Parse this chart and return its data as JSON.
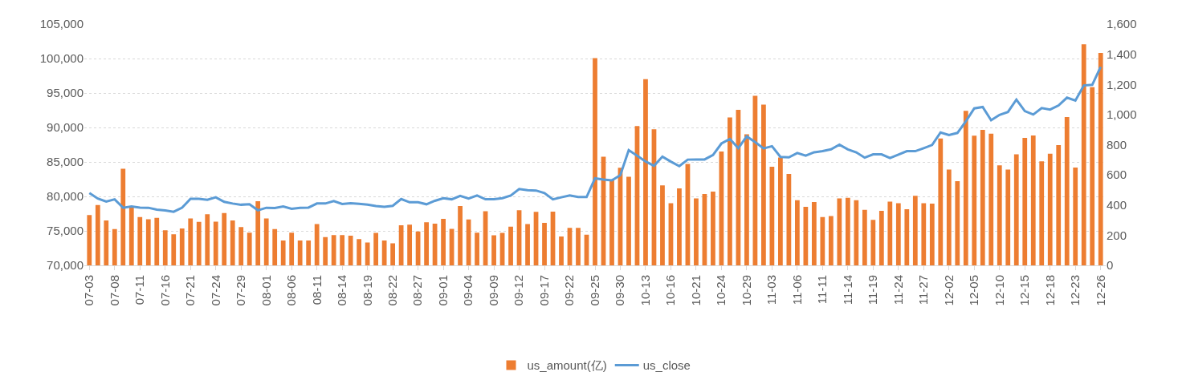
{
  "chart_data": {
    "type": "bar",
    "categories": [
      "07-03",
      null,
      null,
      "07-08",
      null,
      null,
      "07-11",
      null,
      null,
      "07-16",
      null,
      null,
      "07-21",
      null,
      null,
      "07-24",
      null,
      null,
      "07-29",
      null,
      null,
      "08-01",
      null,
      null,
      "08-06",
      null,
      null,
      "08-11",
      null,
      null,
      "08-14",
      null,
      null,
      "08-19",
      null,
      null,
      "08-22",
      null,
      null,
      "08-27",
      null,
      null,
      "09-01",
      null,
      null,
      "09-04",
      null,
      null,
      "09-09",
      null,
      null,
      "09-12",
      null,
      null,
      "09-17",
      null,
      null,
      "09-22",
      null,
      null,
      "09-25",
      null,
      null,
      "09-30",
      null,
      null,
      "10-13",
      null,
      null,
      "10-16",
      null,
      null,
      "10-21",
      null,
      null,
      "10-24",
      null,
      null,
      "10-29",
      null,
      null,
      "11-03",
      null,
      null,
      "11-06",
      null,
      null,
      "11-11",
      null,
      null,
      "11-14",
      null,
      null,
      "11-19",
      null,
      null,
      "11-24",
      null,
      null,
      "11-27",
      null,
      null,
      "12-02",
      null,
      null,
      "12-05",
      null,
      null,
      "12-10",
      null,
      null,
      "12-15",
      null,
      null,
      "12-18",
      null,
      null,
      "12-23",
      null,
      null,
      "12-26"
    ],
    "series": [
      {
        "name": "us_amount(亿)",
        "color": "#ed7d31",
        "values": [
          77300,
          78750,
          76500,
          75250,
          84000,
          78600,
          77000,
          76700,
          76900,
          75100,
          74500,
          75350,
          76800,
          76300,
          77400,
          76350,
          77600,
          76500,
          75550,
          74750,
          79300,
          76800,
          75250,
          73600,
          74750,
          73600,
          73600,
          76000,
          74100,
          74400,
          74400,
          74300,
          73800,
          73300,
          74700,
          73600,
          73200,
          75800,
          75900,
          74900,
          76250,
          76050,
          76750,
          75300,
          78600,
          76650,
          74750,
          77850,
          74350,
          74700,
          75600,
          78000,
          76000,
          77750,
          76150,
          77800,
          74200,
          75450,
          75450,
          74450,
          100050,
          85750,
          82450,
          84150,
          82850,
          90200,
          97000,
          89750,
          81600,
          79000,
          81150,
          84700,
          79700,
          80350,
          80700,
          86500,
          91450,
          92550,
          89000,
          94600,
          93300,
          84300,
          85650,
          83250,
          79450,
          78500,
          79200,
          77000,
          77150,
          79700,
          79800,
          79450,
          78050,
          76600,
          77900,
          79250,
          79000,
          78150,
          80100,
          79000,
          78950,
          88400,
          83900,
          82200,
          92400,
          88800,
          89650,
          89100,
          84500,
          83900,
          86100,
          88500,
          88850,
          85100,
          86200,
          87450,
          91500,
          84200,
          102050,
          95850,
          100800
        ]
      },
      {
        "name": "us_close",
        "type": "line",
        "axis": "y2",
        "color": "#5b9bd5",
        "values": [
          480,
          443,
          423,
          438,
          382,
          390,
          383,
          382,
          369,
          364,
          355,
          382,
          441,
          441,
          435,
          451,
          421,
          410,
          402,
          405,
          365,
          382,
          380,
          390,
          375,
          382,
          383,
          410,
          410,
          426,
          407,
          412,
          408,
          403,
          393,
          388,
          395,
          440,
          418,
          418,
          405,
          428,
          445,
          438,
          461,
          443,
          463,
          438,
          438,
          445,
          463,
          506,
          499,
          496,
          479,
          438,
          451,
          464,
          453,
          453,
          577,
          569,
          564,
          598,
          764,
          727,
          689,
          660,
          721,
          688,
          658,
          701,
          702,
          702,
          732,
          808,
          838,
          777,
          855,
          817,
          775,
          790,
          719,
          716,
          745,
          727,
          750,
          757,
          769,
          800,
          769,
          749,
          714,
          736,
          736,
          712,
          734,
          757,
          757,
          777,
          798,
          881,
          864,
          878,
          955,
          1041,
          1050,
          962,
          998,
          1017,
          1099,
          1023,
          1000,
          1043,
          1033,
          1060,
          1112,
          1093,
          1193,
          1197,
          1316
        ]
      }
    ],
    "ylim": [
      70000,
      105000
    ],
    "yticks": [
      {
        "value": 70000,
        "label": "70,000"
      },
      {
        "value": 75000,
        "label": "75,000"
      },
      {
        "value": 80000,
        "label": "80,000"
      },
      {
        "value": 85000,
        "label": "85,000"
      },
      {
        "value": 90000,
        "label": "90,000"
      },
      {
        "value": 95000,
        "label": "95,000"
      },
      {
        "value": 100000,
        "label": "100,000"
      },
      {
        "value": 105000,
        "label": "105,000"
      }
    ],
    "y2lim": [
      0,
      1600
    ],
    "y2ticks": [
      0,
      200,
      400,
      600,
      800,
      {
        "value": 1000,
        "label": "1,000"
      },
      {
        "value": 1200,
        "label": "1,200"
      },
      {
        "value": 1400,
        "label": "1,400"
      },
      {
        "value": 1600,
        "label": "1,600"
      }
    ],
    "grid": "y",
    "legend": "bottom",
    "marker": "none",
    "line_style": "solid"
  }
}
